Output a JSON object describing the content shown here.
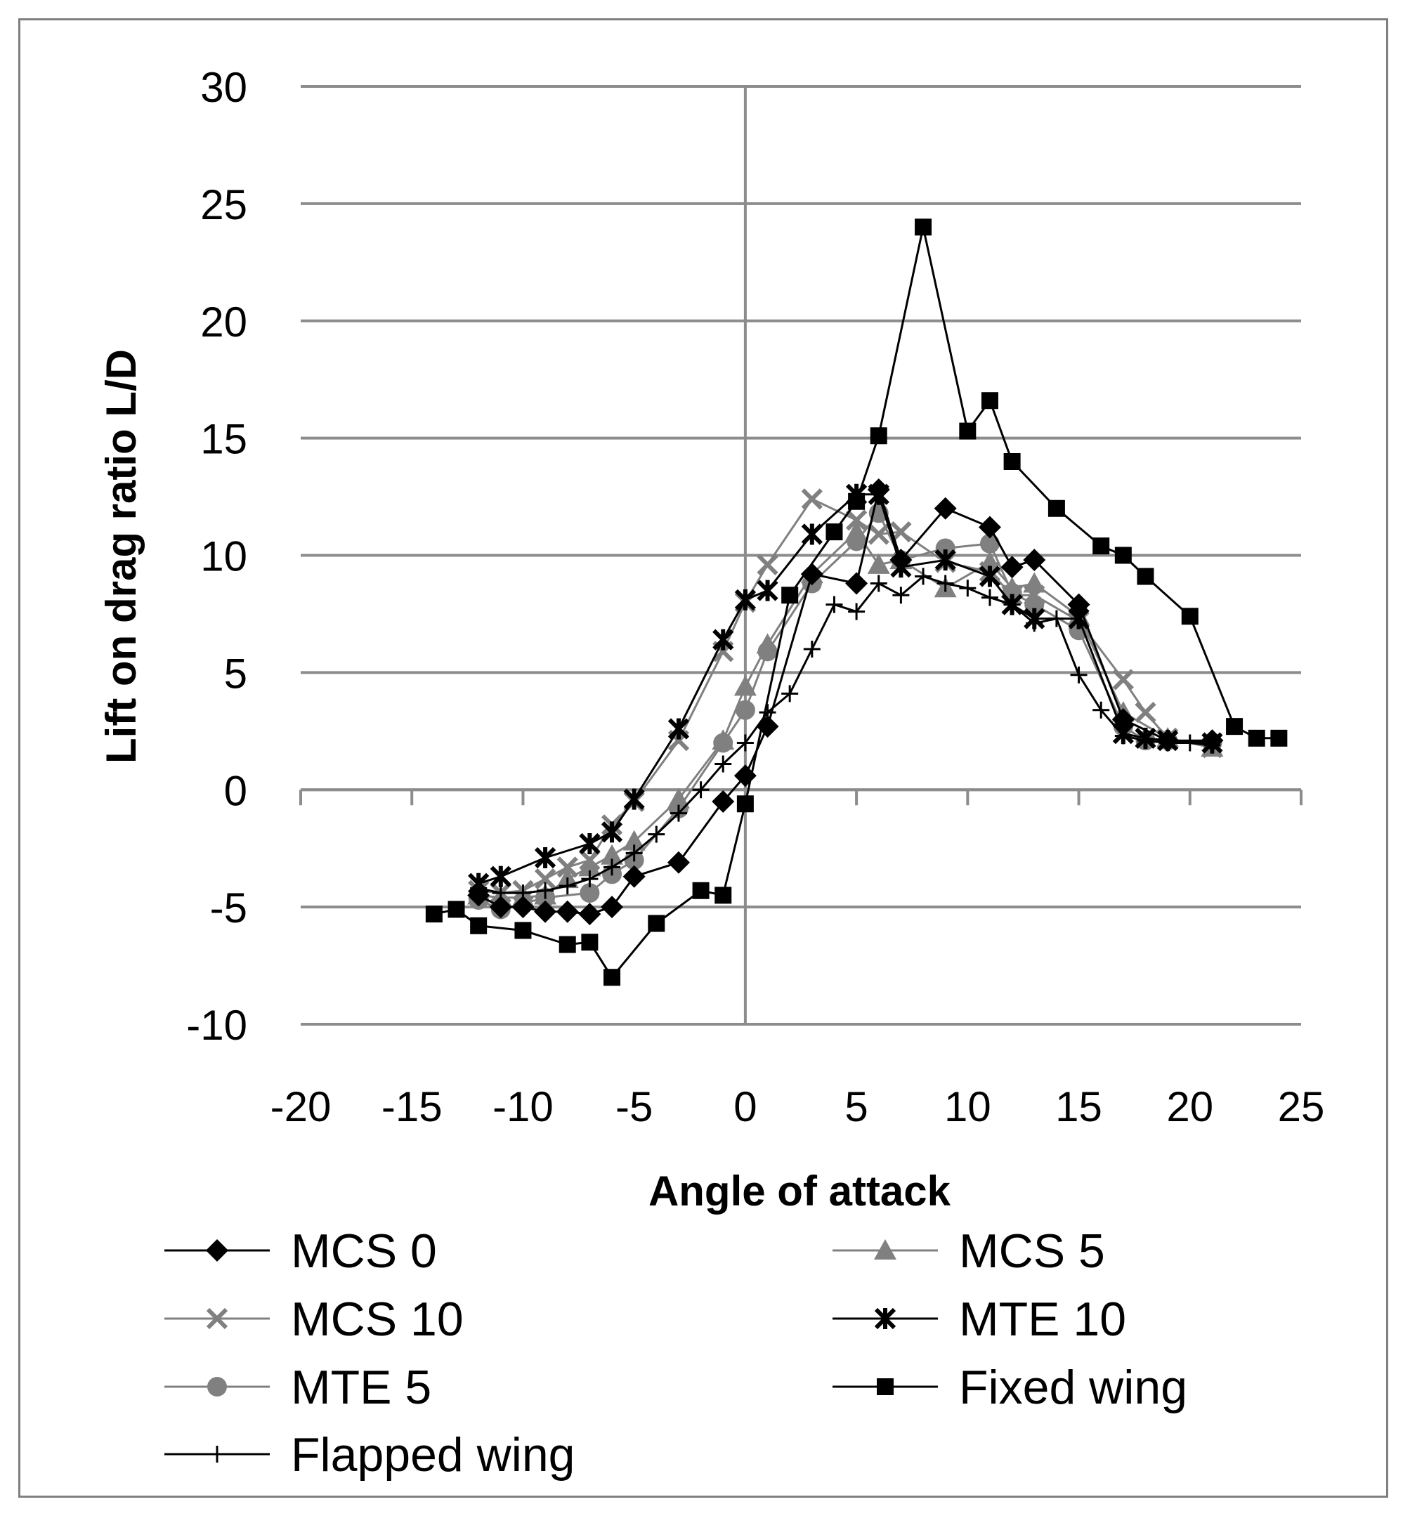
{
  "chart_data": {
    "type": "line",
    "title": "",
    "xlabel": "Angle of attack",
    "ylabel": "Lift on drag ratio L/D",
    "xlim": [
      -20,
      25
    ],
    "ylim": [
      -10,
      30
    ],
    "x_ticks": [
      "-20",
      "-15",
      "-10",
      "-5",
      "0",
      "5",
      "10",
      "15",
      "20",
      "25"
    ],
    "y_ticks": [
      "-10",
      "-5",
      "0",
      "5",
      "10",
      "15",
      "20",
      "25",
      "30"
    ],
    "grid": "horizontal",
    "legend_position": "bottom",
    "series": [
      {
        "name": "MCS 0",
        "color": "#000000",
        "marker": "diamond",
        "x": [
          -12,
          -11,
          -10,
          -9,
          -8,
          -7,
          -6,
          -5,
          -3,
          -1,
          0,
          1,
          3,
          5,
          6,
          7,
          9,
          11,
          12,
          13,
          15,
          17,
          19,
          21
        ],
        "y": [
          -4.5,
          -5,
          -5,
          -5.2,
          -5.2,
          -5.3,
          -5,
          -3.7,
          -3.1,
          -0.5,
          0.6,
          2.7,
          9.2,
          8.8,
          12.8,
          9.8,
          12,
          11.2,
          9.5,
          9.8,
          7.9,
          3,
          2.1,
          2.1
        ]
      },
      {
        "name": "MCS 5",
        "color": "#808080",
        "marker": "triangle",
        "x": [
          -12,
          -11,
          -10,
          -9,
          -8,
          -7,
          -6,
          -5,
          -3,
          -1,
          0,
          1,
          3,
          5,
          6,
          7,
          9,
          11,
          12,
          13,
          15,
          17,
          19,
          21
        ],
        "y": [
          -4.5,
          -4.6,
          -4.6,
          -4.5,
          -3.8,
          -3.3,
          -2.8,
          -2.2,
          -0.4,
          2.1,
          4.4,
          6.2,
          9.2,
          11,
          9.6,
          9.8,
          8.6,
          9.7,
          8.6,
          8.8,
          7.4,
          3.3,
          2.2,
          1.8
        ]
      },
      {
        "name": "MCS 10",
        "color": "#808080",
        "marker": "x",
        "x": [
          -12,
          -11,
          -10,
          -9,
          -8,
          -7,
          -6,
          -5,
          -3,
          -1,
          0,
          1,
          3,
          5,
          6,
          7,
          9,
          11,
          12,
          13,
          15,
          17,
          18,
          19,
          21
        ],
        "y": [
          -4.3,
          -4.4,
          -4.3,
          -3.8,
          -3.3,
          -3,
          -1.5,
          -0.5,
          2.1,
          5.9,
          8,
          9.6,
          12.4,
          11.5,
          10.9,
          11,
          9.7,
          9.3,
          8.3,
          8.3,
          7.2,
          4.7,
          3.3,
          2.2,
          1.8
        ]
      },
      {
        "name": "MTE 10",
        "color": "#000000",
        "marker": "star",
        "x": [
          -12,
          -11,
          -9,
          -7,
          -6,
          -5,
          -3,
          -1,
          0,
          1,
          3,
          5,
          6,
          7,
          9,
          11,
          12,
          13,
          15,
          17,
          18,
          19,
          21
        ],
        "y": [
          -4,
          -3.7,
          -2.9,
          -2.3,
          -1.8,
          -0.4,
          2.6,
          6.4,
          8.1,
          8.5,
          10.9,
          12.6,
          12.6,
          9.5,
          9.8,
          9.1,
          7.9,
          7.3,
          7.3,
          2.4,
          2.2,
          2.1,
          2
        ]
      },
      {
        "name": "MTE 5",
        "color": "#808080",
        "marker": "circle",
        "x": [
          -12,
          -11,
          -9,
          -7,
          -6,
          -5,
          -3,
          -1,
          0,
          1,
          3,
          5,
          6,
          7,
          9,
          11,
          12,
          13,
          15,
          17,
          18,
          19,
          21
        ],
        "y": [
          -4.7,
          -5.1,
          -4.6,
          -4.4,
          -3.6,
          -3,
          -0.8,
          2,
          3.4,
          5.9,
          8.8,
          10.6,
          11.8,
          9.8,
          10.3,
          10.5,
          8.4,
          7.9,
          6.8,
          2.7,
          2.1,
          2.1,
          2
        ]
      },
      {
        "name": "Fixed wing",
        "color": "#000000",
        "marker": "square",
        "x": [
          -14,
          -13,
          -12,
          -10,
          -8,
          -7,
          -6,
          -4,
          -2,
          -1,
          0,
          2,
          4,
          5,
          6,
          8,
          10,
          11,
          12,
          14,
          16,
          17,
          18,
          20,
          22,
          23,
          24
        ],
        "y": [
          -5.3,
          -5.1,
          -5.8,
          -6,
          -6.6,
          -6.5,
          -8,
          -5.7,
          -4.3,
          -4.5,
          -0.6,
          8.3,
          11,
          12.3,
          15.1,
          24,
          15.3,
          16.6,
          14,
          12,
          10.4,
          10,
          9.1,
          7.4,
          2.7,
          2.2,
          2.2
        ]
      },
      {
        "name": "Flapped wing",
        "color": "#000000",
        "marker": "plus",
        "x": [
          -12,
          -11,
          -10,
          -9,
          -8,
          -7,
          -6,
          -5,
          -4,
          -3,
          -2,
          -1,
          0,
          1,
          2,
          3,
          4,
          5,
          6,
          7,
          8,
          9,
          10,
          11,
          12,
          13,
          14,
          15,
          16,
          17,
          18,
          19,
          20,
          21
        ],
        "y": [
          -4.2,
          -4.4,
          -4.4,
          -4.3,
          -4.1,
          -3.8,
          -3.3,
          -2.7,
          -1.9,
          -1,
          0,
          1.1,
          2,
          3.3,
          4.1,
          6,
          7.9,
          7.6,
          8.8,
          8.3,
          9.1,
          8.8,
          8.6,
          8.2,
          7.9,
          7.1,
          7.3,
          4.9,
          3.4,
          2.3,
          2.1,
          2,
          2,
          1.9
        ]
      }
    ]
  }
}
